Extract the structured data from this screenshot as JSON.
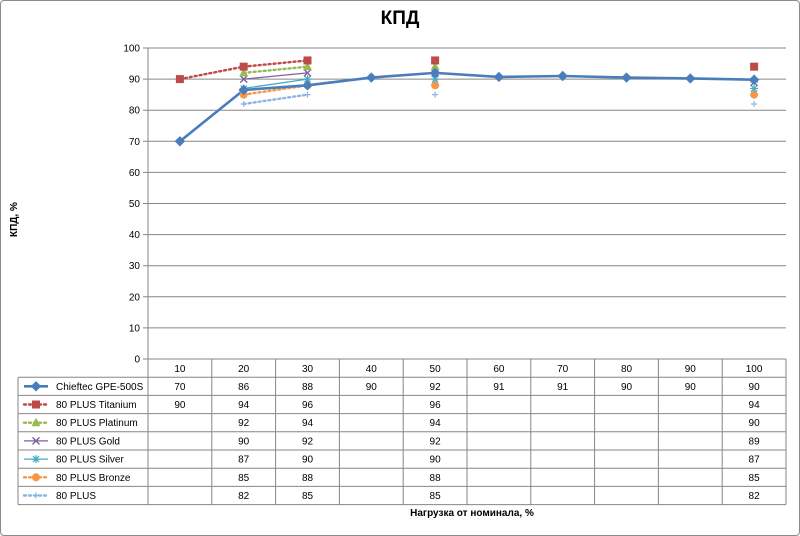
{
  "chart_data": {
    "type": "line",
    "title": "КПД",
    "xlabel": "Нагрузка от номинала,  %",
    "ylabel": "КПД, %",
    "ylim": [
      0,
      100
    ],
    "yticks": [
      0,
      10,
      20,
      30,
      40,
      50,
      60,
      70,
      80,
      90,
      100
    ],
    "categories": [
      "10",
      "20",
      "30",
      "40",
      "50",
      "60",
      "70",
      "80",
      "90",
      "100"
    ],
    "grid": true,
    "legend": "data-table",
    "series": [
      {
        "name": "Chieftec GPE-500S",
        "values": [
          70,
          86.5,
          88,
          90.5,
          92,
          90.7,
          91,
          90.5,
          90.2,
          89.8
        ],
        "labels": [
          "70",
          "86",
          "88",
          "90",
          "92",
          "91",
          "91",
          "90",
          "90",
          "90"
        ],
        "color": "#4a7ebb",
        "style": "solid",
        "marker": "diamond"
      },
      {
        "name": "80 PLUS Titanium",
        "values": [
          90,
          94,
          96,
          null,
          96,
          null,
          null,
          null,
          null,
          94
        ],
        "labels": [
          "90",
          "94",
          "96",
          "",
          "96",
          "",
          "",
          "",
          "",
          "94"
        ],
        "color": "#be4b48",
        "style": "dotted",
        "marker": "square"
      },
      {
        "name": "80 PLUS Platinum",
        "values": [
          null,
          92,
          94,
          null,
          94,
          null,
          null,
          null,
          null,
          90
        ],
        "labels": [
          "",
          "92",
          "94",
          "",
          "94",
          "",
          "",
          "",
          "",
          "90"
        ],
        "color": "#98b954",
        "style": "dotted",
        "marker": "triangle"
      },
      {
        "name": "80 PLUS Gold",
        "values": [
          null,
          90,
          92,
          null,
          92,
          null,
          null,
          null,
          null,
          89
        ],
        "labels": [
          "",
          "90",
          "92",
          "",
          "92",
          "",
          "",
          "",
          "",
          "89"
        ],
        "color": "#7d60a0",
        "style": "solid",
        "marker": "x"
      },
      {
        "name": "80 PLUS Silver",
        "values": [
          null,
          87,
          90,
          null,
          90,
          null,
          null,
          null,
          null,
          87
        ],
        "labels": [
          "",
          "87",
          "90",
          "",
          "90",
          "",
          "",
          "",
          "",
          "87"
        ],
        "color": "#46aac5",
        "style": "solid",
        "marker": "star"
      },
      {
        "name": "80 PLUS Bronze",
        "values": [
          null,
          85,
          88,
          null,
          88,
          null,
          null,
          null,
          null,
          85
        ],
        "labels": [
          "",
          "85",
          "88",
          "",
          "88",
          "",
          "",
          "",
          "",
          "85"
        ],
        "color": "#f79646",
        "style": "dotted",
        "marker": "circle"
      },
      {
        "name": "80 PLUS",
        "values": [
          null,
          82,
          85,
          null,
          85,
          null,
          null,
          null,
          null,
          82
        ],
        "labels": [
          "",
          "82",
          "85",
          "",
          "85",
          "",
          "",
          "",
          "",
          "82"
        ],
        "color": "#8eb4e3",
        "style": "dotted",
        "marker": "plus"
      }
    ]
  }
}
